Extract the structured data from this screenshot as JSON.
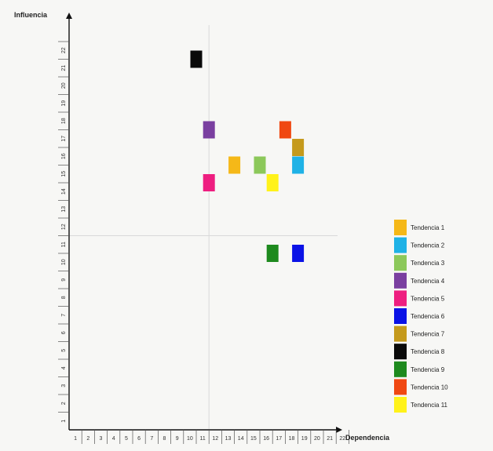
{
  "chart_data": {
    "type": "scatter",
    "xlabel": "Dependencia",
    "ylabel": "Influencia",
    "xlim": [
      0,
      22
    ],
    "ylim": [
      0,
      22
    ],
    "x_ticks": [
      "1",
      "2",
      "3",
      "4",
      "5",
      "6",
      "7",
      "8",
      "9",
      "10",
      "11",
      "12",
      "13",
      "14",
      "15",
      "16",
      "17",
      "18",
      "19",
      "20",
      "21",
      "22"
    ],
    "y_ticks": [
      "1",
      "2",
      "3",
      "4",
      "5",
      "6",
      "7",
      "8",
      "9",
      "10",
      "11",
      "12",
      "13",
      "14",
      "15",
      "16",
      "17",
      "18",
      "19",
      "20",
      "21",
      "22"
    ],
    "reference_lines": {
      "x": 11,
      "y": 11
    },
    "grid": false,
    "legend_position": "right",
    "series": [
      {
        "name": "Tendencia 1",
        "color": "#F5B818",
        "x": 13,
        "y": 15
      },
      {
        "name": "Tendencia 2",
        "color": "#1FB2E6",
        "x": 18,
        "y": 15
      },
      {
        "name": "Tendencia 3",
        "color": "#8CC85A",
        "x": 15,
        "y": 15
      },
      {
        "name": "Tendencia 4",
        "color": "#7A3FA0",
        "x": 11,
        "y": 17
      },
      {
        "name": "Tendencia 5",
        "color": "#EE1E80",
        "x": 11,
        "y": 14
      },
      {
        "name": "Tendencia 6",
        "color": "#0A12E6",
        "x": 18,
        "y": 10
      },
      {
        "name": "Tendencia 7",
        "color": "#C59A1C",
        "x": 18,
        "y": 16
      },
      {
        "name": "Tendencia 8",
        "color": "#0A0A0A",
        "x": 10,
        "y": 21
      },
      {
        "name": "Tendencia 9",
        "color": "#1E8A1E",
        "x": 16,
        "y": 10
      },
      {
        "name": "Tendencia 10",
        "color": "#F04812",
        "x": 17,
        "y": 17
      },
      {
        "name": "Tendencia 11",
        "color": "#FFF21A",
        "x": 16,
        "y": 14
      }
    ]
  }
}
